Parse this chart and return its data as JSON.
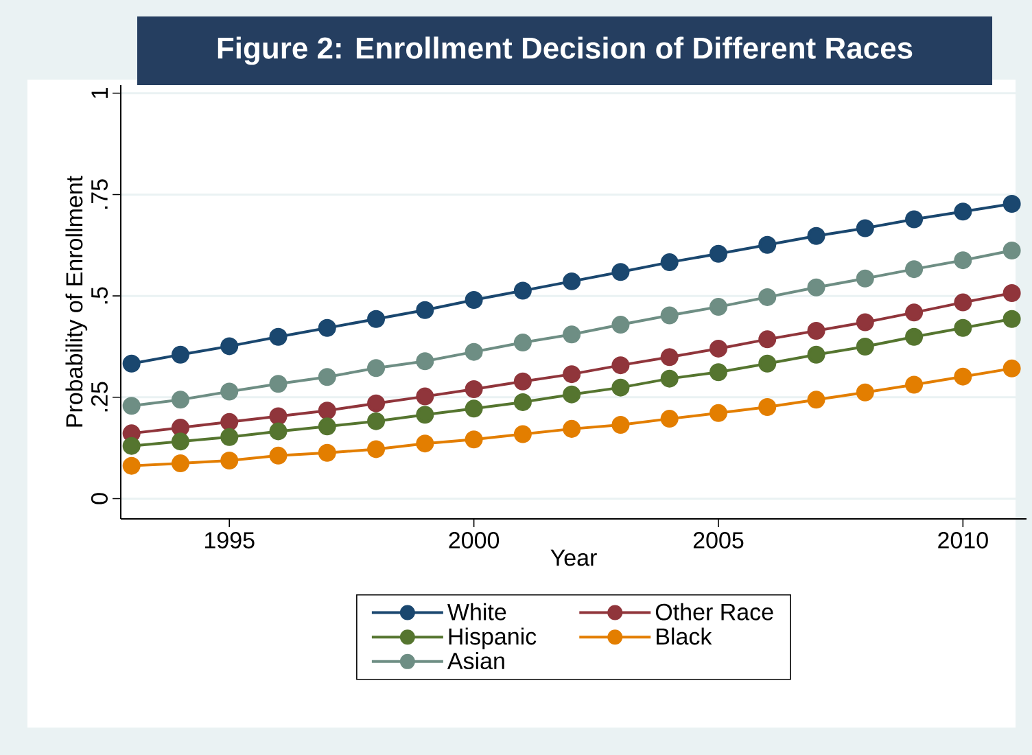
{
  "chart_data": {
    "type": "line",
    "title": "Figure 2: Enrollment Decision of Different Races",
    "xlabel": "Year",
    "ylabel": "Probability of Enrollment",
    "x": [
      1993,
      1994,
      1995,
      1996,
      1997,
      1998,
      1999,
      2000,
      2001,
      2002,
      2003,
      2004,
      2005,
      2006,
      2007,
      2008,
      2009,
      2010,
      2011
    ],
    "series": [
      {
        "name": "White",
        "color": "#1a476f",
        "values": [
          0.333,
          0.355,
          0.376,
          0.399,
          0.421,
          0.443,
          0.465,
          0.49,
          0.513,
          0.536,
          0.559,
          0.583,
          0.604,
          0.626,
          0.648,
          0.667,
          0.689,
          0.708,
          0.727
        ]
      },
      {
        "name": "Other Race",
        "color": "#90353b",
        "values": [
          0.161,
          0.175,
          0.189,
          0.203,
          0.217,
          0.235,
          0.252,
          0.27,
          0.289,
          0.307,
          0.329,
          0.349,
          0.37,
          0.393,
          0.414,
          0.435,
          0.459,
          0.484,
          0.507
        ]
      },
      {
        "name": "Hispanic",
        "color": "#55752f",
        "values": [
          0.13,
          0.141,
          0.152,
          0.166,
          0.178,
          0.191,
          0.207,
          0.222,
          0.238,
          0.257,
          0.274,
          0.296,
          0.312,
          0.333,
          0.355,
          0.375,
          0.399,
          0.421,
          0.443
        ]
      },
      {
        "name": "Black",
        "color": "#e37e00",
        "values": [
          0.081,
          0.087,
          0.094,
          0.106,
          0.113,
          0.122,
          0.136,
          0.146,
          0.159,
          0.172,
          0.182,
          0.197,
          0.211,
          0.226,
          0.244,
          0.262,
          0.281,
          0.301,
          0.321
        ]
      },
      {
        "name": "Asian",
        "color": "#6e8e84",
        "values": [
          0.229,
          0.244,
          0.264,
          0.283,
          0.3,
          0.322,
          0.339,
          0.362,
          0.385,
          0.405,
          0.429,
          0.452,
          0.473,
          0.497,
          0.521,
          0.543,
          0.566,
          0.588,
          0.612
        ]
      }
    ],
    "xlim": [
      1992.78,
      2011.3
    ],
    "xticks": [
      1995,
      2000,
      2005,
      2010
    ],
    "ylim": [
      -0.05,
      1.02
    ],
    "yticks": [
      {
        "value": 0,
        "label": "0"
      },
      {
        "value": 0.25,
        "label": ".25"
      },
      {
        "value": 0.5,
        "label": ".5"
      },
      {
        "value": 0.75,
        "label": ".75"
      },
      {
        "value": 1,
        "label": "1"
      }
    ],
    "grid": "y",
    "legend": "bottom",
    "marker": "circle",
    "line_style": "solid"
  }
}
